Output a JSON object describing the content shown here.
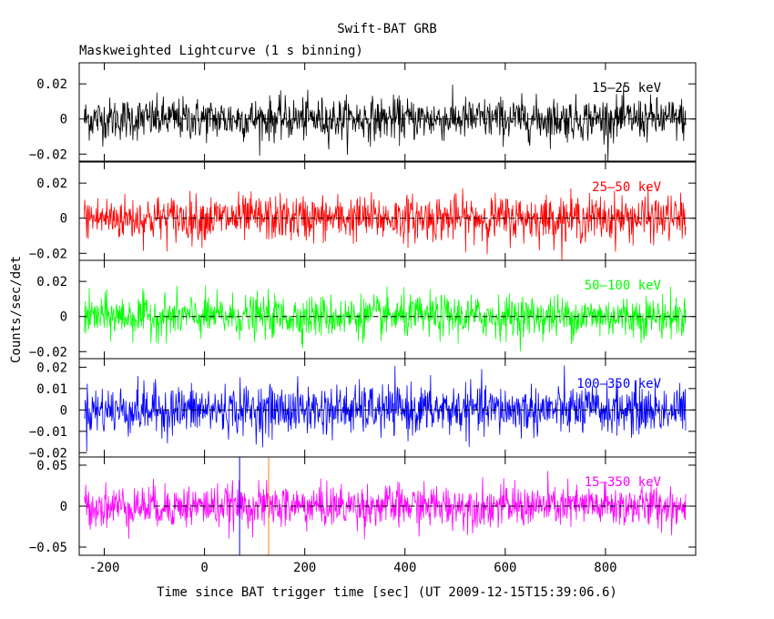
{
  "chart_data": {
    "type": "line",
    "title": "Swift-BAT GRB",
    "subtitle": "Maskweighted Lightcurve (1 s binning)",
    "xlabel": "Time since BAT trigger time [sec] (UT 2009-12-15T15:39:06.6)",
    "ylabel": "Counts/sec/det",
    "xlim": [
      -250,
      980
    ],
    "binning_sec": 1,
    "series_x_range": [
      -240,
      960
    ],
    "x_ticks": [
      "-200",
      "0",
      "200",
      "400",
      "600",
      "800"
    ],
    "x_tick_values": [
      -200,
      0,
      200,
      400,
      600,
      800
    ],
    "zero_line": "dashed",
    "marker_lines": [
      {
        "x": 70,
        "color": "#0000ff"
      },
      {
        "x": 128,
        "color": "#ff8000"
      }
    ],
    "panels": [
      {
        "name": "15-25 keV",
        "band_label": "15–25 keV",
        "color": "#000000",
        "ylim": [
          -0.024,
          0.032
        ],
        "y_ticks": [
          "−0.02",
          "0",
          "0.02"
        ],
        "y_tick_values": [
          -0.02,
          0,
          0.02
        ],
        "noise_sigma": 0.006,
        "baseline": 0.0
      },
      {
        "name": "25-50 keV",
        "band_label": "25–50 keV",
        "color": "#ff0000",
        "ylim": [
          -0.024,
          0.032
        ],
        "y_ticks": [
          "−0.02",
          "0",
          "0.02"
        ],
        "y_tick_values": [
          -0.02,
          0,
          0.02
        ],
        "noise_sigma": 0.0065,
        "baseline": 0.0
      },
      {
        "name": "50-100 keV",
        "band_label": "50–100 keV",
        "color": "#00ff00",
        "ylim": [
          -0.024,
          0.032
        ],
        "y_ticks": [
          "−0.02",
          "0",
          "0.02"
        ],
        "y_tick_values": [
          -0.02,
          0,
          0.02
        ],
        "noise_sigma": 0.006,
        "baseline": 0.0
      },
      {
        "name": "100-350 keV",
        "band_label": "100–350 keV",
        "color": "#0000ff",
        "ylim": [
          -0.022,
          0.024
        ],
        "y_ticks": [
          "−0.02",
          "−0.01",
          "0",
          "0.01",
          "0.02"
        ],
        "y_tick_values": [
          -0.02,
          -0.01,
          0,
          0.01,
          0.02
        ],
        "noise_sigma": 0.0058,
        "baseline": 0.0
      },
      {
        "name": "15-350 keV",
        "band_label": "15–350 keV",
        "color": "#ff00ff",
        "ylim": [
          -0.06,
          0.06
        ],
        "y_ticks": [
          "−0.05",
          "0",
          "0.05"
        ],
        "y_tick_values": [
          -0.05,
          0,
          0.05
        ],
        "noise_sigma": 0.013,
        "baseline": 0.0
      }
    ]
  }
}
